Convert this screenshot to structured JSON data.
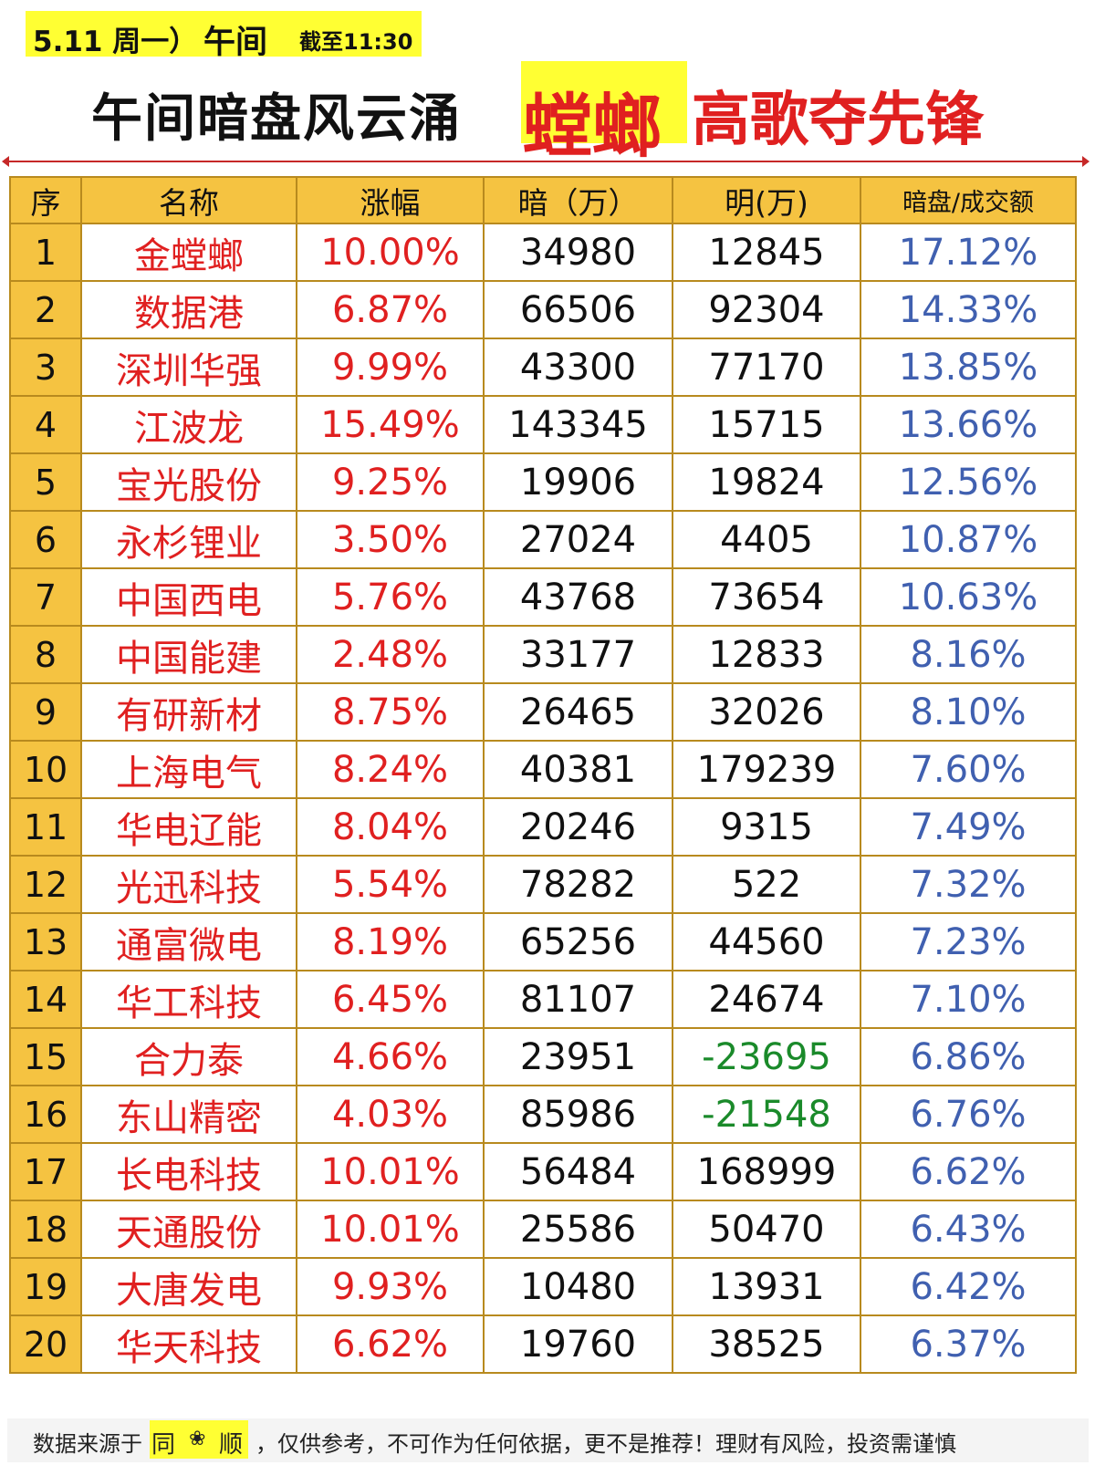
{
  "banner": {
    "date": "5.11 周一）",
    "session": "午间",
    "cutoff": "截至11:30"
  },
  "headline": {
    "left": "午间暗盘风云涌",
    "highlight": "螳螂",
    "right": "高歌夺先锋"
  },
  "table": {
    "headers": [
      "序",
      "名称",
      "涨幅",
      "暗（万）",
      "明(万)",
      "暗盘/成交额"
    ],
    "rows": [
      {
        "seq": "1",
        "name": "金螳螂",
        "change": "10.00%",
        "dark": "34980",
        "bright": "12845",
        "ratio": "17.12%"
      },
      {
        "seq": "2",
        "name": "数据港",
        "change": "6.87%",
        "dark": "66506",
        "bright": "92304",
        "ratio": "14.33%"
      },
      {
        "seq": "3",
        "name": "深圳华强",
        "change": "9.99%",
        "dark": "43300",
        "bright": "77170",
        "ratio": "13.85%"
      },
      {
        "seq": "4",
        "name": "江波龙",
        "change": "15.49%",
        "dark": "143345",
        "bright": "15715",
        "ratio": "13.66%"
      },
      {
        "seq": "5",
        "name": "宝光股份",
        "change": "9.25%",
        "dark": "19906",
        "bright": "19824",
        "ratio": "12.56%"
      },
      {
        "seq": "6",
        "name": "永杉锂业",
        "change": "3.50%",
        "dark": "27024",
        "bright": "4405",
        "ratio": "10.87%"
      },
      {
        "seq": "7",
        "name": "中国西电",
        "change": "5.76%",
        "dark": "43768",
        "bright": "73654",
        "ratio": "10.63%"
      },
      {
        "seq": "8",
        "name": "中国能建",
        "change": "2.48%",
        "dark": "33177",
        "bright": "12833",
        "ratio": "8.16%"
      },
      {
        "seq": "9",
        "name": "有研新材",
        "change": "8.75%",
        "dark": "26465",
        "bright": "32026",
        "ratio": "8.10%"
      },
      {
        "seq": "10",
        "name": "上海电气",
        "change": "8.24%",
        "dark": "40381",
        "bright": "179239",
        "ratio": "7.60%"
      },
      {
        "seq": "11",
        "name": "华电辽能",
        "change": "8.04%",
        "dark": "20246",
        "bright": "9315",
        "ratio": "7.49%"
      },
      {
        "seq": "12",
        "name": "光迅科技",
        "change": "5.54%",
        "dark": "78282",
        "bright": "522",
        "ratio": "7.32%"
      },
      {
        "seq": "13",
        "name": "通富微电",
        "change": "8.19%",
        "dark": "65256",
        "bright": "44560",
        "ratio": "7.23%"
      },
      {
        "seq": "14",
        "name": "华工科技",
        "change": "6.45%",
        "dark": "81107",
        "bright": "24674",
        "ratio": "7.10%"
      },
      {
        "seq": "15",
        "name": "合力泰",
        "change": "4.66%",
        "dark": "23951",
        "bright": "-23695",
        "ratio": "6.86%"
      },
      {
        "seq": "16",
        "name": "东山精密",
        "change": "4.03%",
        "dark": "85986",
        "bright": "-21548",
        "ratio": "6.76%"
      },
      {
        "seq": "17",
        "name": "长电科技",
        "change": "10.01%",
        "dark": "56484",
        "bright": "168999",
        "ratio": "6.62%"
      },
      {
        "seq": "18",
        "name": "天通股份",
        "change": "10.01%",
        "dark": "25586",
        "bright": "50470",
        "ratio": "6.43%"
      },
      {
        "seq": "19",
        "name": "大唐发电",
        "change": "9.93%",
        "dark": "10480",
        "bright": "13931",
        "ratio": "6.42%"
      },
      {
        "seq": "20",
        "name": "华天科技",
        "change": "6.62%",
        "dark": "19760",
        "bright": "38525",
        "ratio": "6.37%"
      }
    ]
  },
  "footer": {
    "prefix": "数据来源于",
    "brand_a": "同",
    "brand_icon": "flower-icon",
    "brand_b": "顺",
    "suffix": "，仅供参考，不可作为任何依据，更不是推荐！理财有风险，投资需谨慎"
  },
  "colors": {
    "banner_yellow": "#ffff33",
    "header_gold": "#f5c341",
    "border_gold": "#b88a1e",
    "name_red": "#e02020",
    "negative_green": "#1a8a2a",
    "ratio_blue": "#4060b0"
  }
}
